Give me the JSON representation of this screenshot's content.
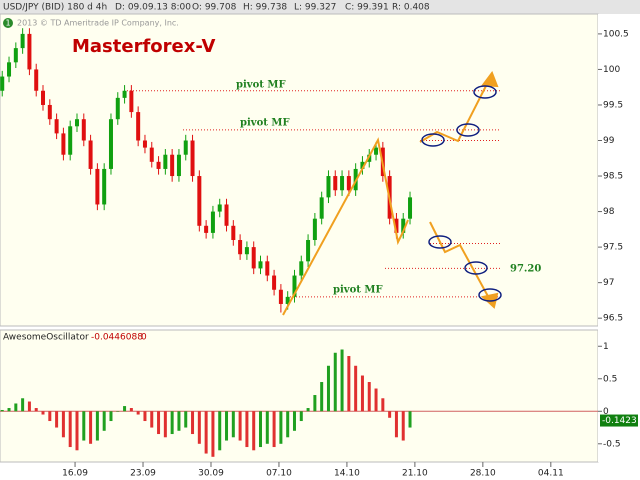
{
  "header": {
    "symbol": "USD/JPY (BID) 180 d 4h",
    "date": "D: 09.09.13 8:00",
    "open": "O: 99.708",
    "high": "H: 99.738",
    "low": "L: 99.327",
    "close": "C: 99.391",
    "range": "R: 0.408",
    "copyright": "2013 © TD Ameritrade IP Company, Inc.",
    "badge": "1"
  },
  "chart_data": [
    {
      "type": "candlestick",
      "title": "Masterforex-V",
      "up_color": "#10a010",
      "down_color": "#e01010",
      "x": [
        8.5,
        9.2,
        9.9,
        10.6,
        11.3,
        12.0,
        12.7,
        13.4,
        14.1,
        14.8,
        15.5,
        16.2,
        16.9,
        17.6,
        18.3,
        19.0,
        19.7,
        20.4,
        21.1,
        21.8,
        22.5,
        23.2,
        23.9,
        24.6,
        25.3,
        26.0,
        26.7,
        27.4,
        28.1,
        28.8,
        29.5,
        30.2,
        30.9,
        31.6,
        32.3,
        33.0,
        33.7,
        34.4,
        35.1,
        35.8,
        36.5,
        37.2,
        37.9,
        38.6,
        39.3,
        40.0,
        40.7,
        41.4,
        42.1,
        42.8,
        43.5,
        44.2,
        44.9,
        45.6,
        46.3,
        47.0,
        47.7,
        48.4,
        49.1,
        49.8,
        50.5
      ],
      "candles": [
        [
          99.7,
          99.98,
          99.62,
          99.9
        ],
        [
          99.9,
          100.18,
          99.82,
          100.1
        ],
        [
          100.1,
          100.38,
          100.02,
          100.3
        ],
        [
          100.3,
          100.58,
          100.22,
          100.5
        ],
        [
          100.5,
          100.58,
          99.92,
          100.0
        ],
        [
          100.0,
          100.08,
          99.62,
          99.7
        ],
        [
          99.7,
          99.78,
          99.42,
          99.5
        ],
        [
          99.5,
          99.58,
          99.22,
          99.3
        ],
        [
          99.3,
          99.38,
          99.02,
          99.1
        ],
        [
          99.1,
          99.18,
          98.72,
          98.8
        ],
        [
          98.8,
          99.28,
          98.72,
          99.2
        ],
        [
          99.2,
          99.38,
          99.12,
          99.3
        ],
        [
          99.3,
          99.38,
          98.92,
          99.0
        ],
        [
          99.0,
          99.08,
          98.52,
          98.6
        ],
        [
          98.6,
          98.68,
          98.02,
          98.1
        ],
        [
          98.1,
          98.68,
          98.02,
          98.6
        ],
        [
          98.6,
          99.38,
          98.52,
          99.3
        ],
        [
          99.3,
          99.68,
          99.22,
          99.6
        ],
        [
          99.6,
          99.78,
          99.52,
          99.7
        ],
        [
          99.7,
          99.78,
          99.32,
          99.4
        ],
        [
          99.4,
          99.48,
          98.92,
          99.0
        ],
        [
          99.0,
          99.08,
          98.82,
          98.9
        ],
        [
          98.9,
          98.98,
          98.62,
          98.7
        ],
        [
          98.7,
          98.78,
          98.52,
          98.6
        ],
        [
          98.6,
          98.88,
          98.52,
          98.8
        ],
        [
          98.8,
          98.88,
          98.42,
          98.5
        ],
        [
          98.5,
          98.88,
          98.42,
          98.8
        ],
        [
          98.8,
          99.08,
          98.72,
          99.0
        ],
        [
          99.0,
          99.08,
          98.42,
          98.5
        ],
        [
          98.5,
          98.58,
          97.72,
          97.8
        ],
        [
          97.8,
          97.88,
          97.62,
          97.7
        ],
        [
          97.7,
          98.08,
          97.62,
          98.0
        ],
        [
          98.0,
          98.18,
          97.92,
          98.1
        ],
        [
          98.1,
          98.18,
          97.72,
          97.8
        ],
        [
          97.8,
          97.88,
          97.52,
          97.6
        ],
        [
          97.6,
          97.68,
          97.32,
          97.4
        ],
        [
          97.4,
          97.58,
          97.32,
          97.5
        ],
        [
          97.5,
          97.58,
          97.12,
          97.2
        ],
        [
          97.2,
          97.38,
          97.12,
          97.3
        ],
        [
          97.3,
          97.38,
          97.02,
          97.1
        ],
        [
          97.1,
          97.18,
          96.82,
          96.9
        ],
        [
          96.9,
          96.98,
          96.58,
          96.7
        ],
        [
          96.7,
          96.88,
          96.62,
          96.8
        ],
        [
          96.8,
          97.18,
          96.72,
          97.1
        ],
        [
          97.1,
          97.38,
          97.02,
          97.3
        ],
        [
          97.3,
          97.68,
          97.22,
          97.6
        ],
        [
          97.6,
          97.98,
          97.52,
          97.9
        ],
        [
          97.9,
          98.28,
          97.82,
          98.2
        ],
        [
          98.2,
          98.58,
          98.12,
          98.5
        ],
        [
          98.5,
          98.58,
          98.22,
          98.3
        ],
        [
          98.3,
          98.58,
          98.22,
          98.5
        ],
        [
          98.5,
          98.58,
          98.22,
          98.3
        ],
        [
          98.3,
          98.68,
          98.22,
          98.6
        ],
        [
          98.6,
          98.78,
          98.52,
          98.7
        ],
        [
          98.7,
          98.88,
          98.62,
          98.8
        ],
        [
          98.8,
          98.98,
          98.72,
          98.9
        ],
        [
          98.9,
          98.98,
          98.42,
          98.5
        ],
        [
          98.5,
          98.58,
          97.82,
          97.9
        ],
        [
          97.9,
          97.98,
          97.62,
          97.7
        ],
        [
          97.7,
          97.98,
          97.62,
          97.9
        ],
        [
          97.9,
          98.28,
          97.82,
          98.2
        ]
      ],
      "xlim": [
        8.27,
        69.86
      ],
      "ylim": [
        96.39,
        100.78
      ],
      "yticks": [
        100.5,
        100,
        99.5,
        99,
        98.5,
        98,
        97.5,
        97,
        96.5
      ],
      "levels": [
        99.7,
        99.15,
        99.0,
        97.55,
        97.2,
        96.8
      ],
      "level_color": "#e02020",
      "labels": [
        "pivot MF",
        "pivot MF",
        "pivot MF",
        "97.20"
      ]
    },
    {
      "type": "bar",
      "name": "AwesomeOscillator",
      "legend_values": [
        -0.0446088,
        0
      ],
      "last_value": -0.1423,
      "up_color": "#20a020",
      "down_color": "#e03030",
      "x": [
        8.5,
        9.2,
        9.9,
        10.6,
        11.3,
        12.0,
        12.7,
        13.4,
        14.1,
        14.8,
        15.5,
        16.2,
        16.9,
        17.6,
        18.3,
        19.0,
        19.7,
        20.4,
        21.1,
        21.8,
        22.5,
        23.2,
        23.9,
        24.6,
        25.3,
        26.0,
        26.7,
        27.4,
        28.1,
        28.8,
        29.5,
        30.2,
        30.9,
        31.6,
        32.3,
        33.0,
        33.7,
        34.4,
        35.1,
        35.8,
        36.5,
        37.2,
        37.9,
        38.6,
        39.3,
        40.0,
        40.7,
        41.4,
        42.1,
        42.8,
        43.5,
        44.2,
        44.9,
        45.6,
        46.3,
        47.0,
        47.7,
        48.4,
        49.1,
        49.8,
        50.5
      ],
      "values": [
        0.02,
        0.05,
        0.12,
        0.2,
        0.15,
        0.05,
        -0.05,
        -0.15,
        -0.25,
        -0.4,
        -0.55,
        -0.6,
        -0.45,
        -0.5,
        -0.45,
        -0.3,
        -0.15,
        0.0,
        0.08,
        0.05,
        -0.05,
        -0.15,
        -0.25,
        -0.35,
        -0.4,
        -0.35,
        -0.3,
        -0.25,
        -0.35,
        -0.5,
        -0.65,
        -0.7,
        -0.6,
        -0.45,
        -0.4,
        -0.45,
        -0.55,
        -0.6,
        -0.55,
        -0.5,
        -0.55,
        -0.5,
        -0.4,
        -0.3,
        -0.15,
        0.05,
        0.25,
        0.45,
        0.7,
        0.9,
        0.95,
        0.85,
        0.7,
        0.55,
        0.45,
        0.35,
        0.2,
        -0.1,
        -0.4,
        -0.45,
        -0.25
      ],
      "xlim": [
        8.27,
        69.86
      ],
      "ylim": [
        -0.78,
        1.25
      ],
      "yticks": [
        1,
        0.5,
        0,
        -0.5
      ],
      "xticks": [
        {
          "value": 16,
          "label": "16.09"
        },
        {
          "value": 23,
          "label": "23.09"
        },
        {
          "value": 30,
          "label": "30.09"
        },
        {
          "value": 37,
          "label": "07.10"
        },
        {
          "value": 44,
          "label": "14.10"
        },
        {
          "value": 51,
          "label": "21.10"
        },
        {
          "value": 58,
          "label": "28.10"
        },
        {
          "value": 65,
          "label": "04.11"
        }
      ]
    }
  ]
}
